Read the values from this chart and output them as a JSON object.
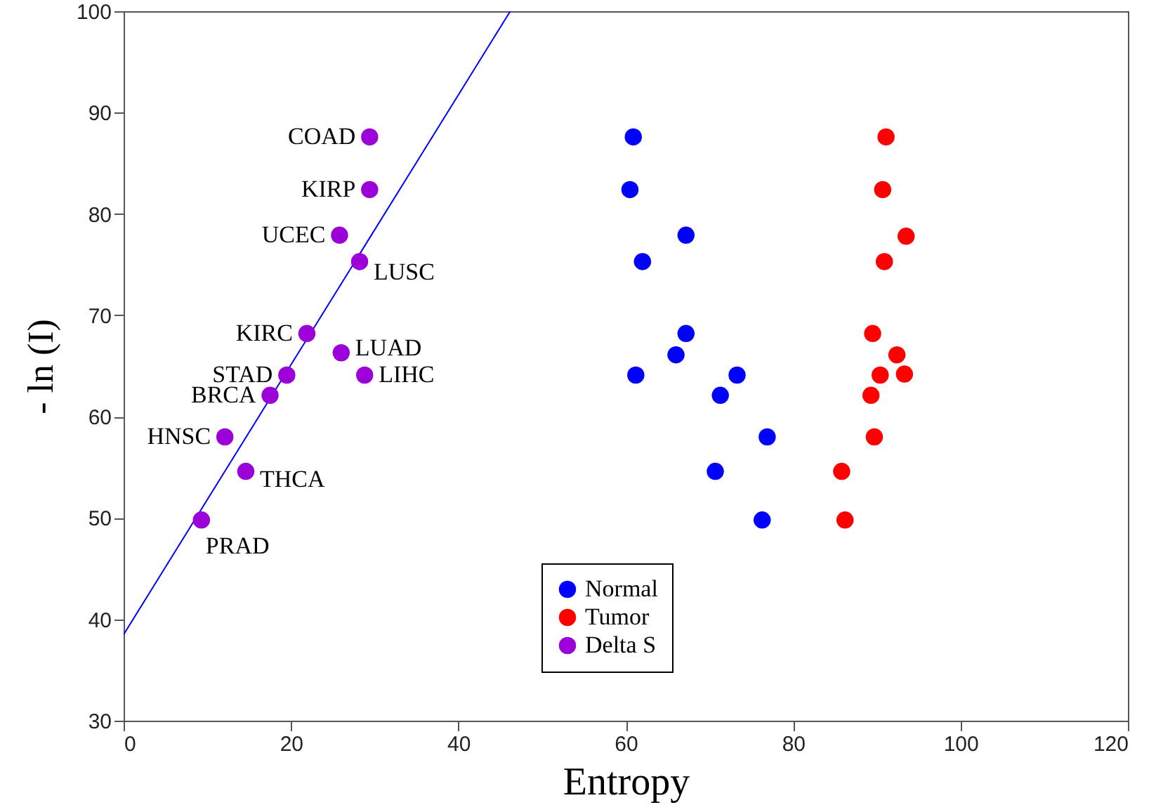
{
  "chart_data": {
    "type": "scatter",
    "xlabel": "Entropy",
    "ylabel": "- ln (I)",
    "xlim": [
      0,
      120
    ],
    "ylim": [
      30,
      100
    ],
    "xticks": [
      0,
      20,
      40,
      60,
      80,
      100,
      120
    ],
    "yticks": [
      30,
      40,
      50,
      60,
      70,
      80,
      90,
      100
    ],
    "grid": false,
    "legend": "bottom",
    "marker": "circle",
    "series": [
      {
        "name": "Normal",
        "color": "#0000ff",
        "x": [
          60.9,
          60.5,
          67.2,
          62.0,
          67.2,
          66.0,
          61.2,
          73.3,
          71.3,
          76.9,
          70.7,
          76.3
        ],
        "values": [
          87.6,
          82.4,
          77.9,
          75.3,
          68.2,
          66.1,
          64.1,
          64.1,
          62.1,
          58.0,
          54.6,
          49.8
        ]
      },
      {
        "name": "Tumor",
        "color": "#ff0000",
        "x": [
          91.1,
          90.7,
          93.5,
          90.9,
          89.5,
          92.4,
          90.4,
          93.3,
          89.3,
          89.7,
          85.8,
          86.2
        ],
        "values": [
          87.6,
          82.4,
          77.8,
          75.3,
          68.2,
          66.1,
          64.1,
          64.2,
          62.1,
          58.0,
          54.6,
          49.8
        ]
      },
      {
        "name": "Delta S",
        "color": "#9b00d9",
        "x": [
          29.4,
          29.4,
          25.8,
          28.2,
          21.9,
          26.0,
          28.8,
          19.5,
          17.5,
          12.1,
          14.6,
          9.3
        ],
        "values": [
          87.6,
          82.4,
          77.9,
          75.3,
          68.2,
          66.3,
          64.1,
          64.1,
          62.1,
          58.0,
          54.6,
          49.8
        ]
      },
      {
        "type": "line",
        "marker": "none",
        "color": "#0000ff",
        "x": [
          0,
          46.2
        ],
        "values": [
          38.5,
          100
        ]
      }
    ],
    "annotations": [
      {
        "text": "COAD",
        "x": 29.4,
        "y": 87.6
      },
      {
        "text": "KIRP",
        "x": 29.4,
        "y": 82.4
      },
      {
        "text": "UCEC",
        "x": 25.8,
        "y": 77.9
      },
      {
        "text": "LUSC",
        "x": 28.2,
        "y": 75.3
      },
      {
        "text": "KIRC",
        "x": 21.9,
        "y": 68.2
      },
      {
        "text": "LUAD",
        "x": 26.0,
        "y": 66.3
      },
      {
        "text": "LIHC",
        "x": 28.8,
        "y": 64.1
      },
      {
        "text": "STAD",
        "x": 19.5,
        "y": 64.1
      },
      {
        "text": "BRCA",
        "x": 17.5,
        "y": 62.1
      },
      {
        "text": "HNSC",
        "x": 12.1,
        "y": 58.0
      },
      {
        "text": "THCA",
        "x": 14.6,
        "y": 54.6
      },
      {
        "text": "PRAD",
        "x": 9.3,
        "y": 49.8
      }
    ]
  }
}
